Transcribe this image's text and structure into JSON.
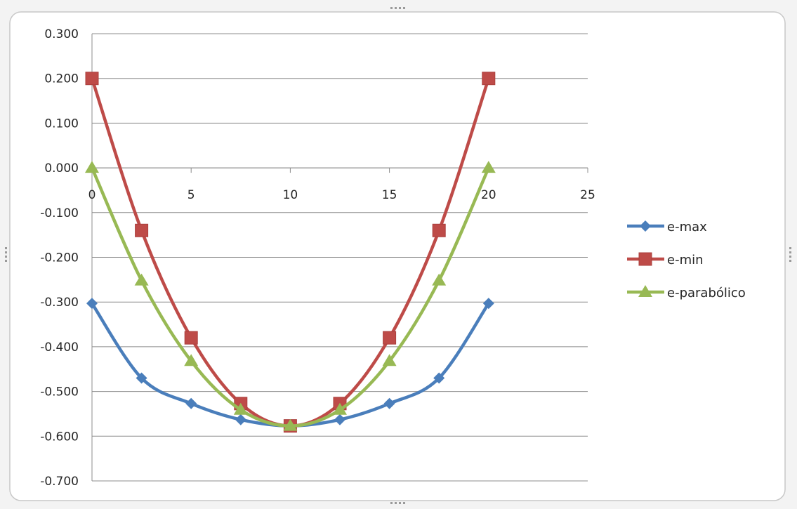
{
  "chart_data": {
    "type": "scatter",
    "title": "",
    "xlabel": "",
    "ylabel": "",
    "xlim": [
      0,
      25
    ],
    "ylim": [
      -0.7,
      0.3
    ],
    "x_ticks": [
      "0",
      "5",
      "10",
      "15",
      "20",
      "25"
    ],
    "y_ticks": [
      "0.300",
      "0.200",
      "0.100",
      "0.000",
      "-0.100",
      "-0.200",
      "-0.300",
      "-0.400",
      "-0.500",
      "-0.600",
      "-0.700"
    ],
    "grid": "horizontal",
    "legend_position": "right",
    "smooth_lines": true,
    "x": [
      0,
      2.5,
      5,
      7.5,
      10,
      12.5,
      15,
      17.5,
      20
    ],
    "series": [
      {
        "name": "e-max",
        "color": "#4a7ebb",
        "marker": "diamond",
        "values": [
          -0.303,
          -0.47,
          -0.527,
          -0.563,
          -0.577,
          -0.563,
          -0.527,
          -0.47,
          -0.303
        ]
      },
      {
        "name": "e-min",
        "color": "#be4b48",
        "marker": "square",
        "values": [
          0.2,
          -0.14,
          -0.38,
          -0.527,
          -0.577,
          -0.527,
          -0.38,
          -0.14,
          0.2
        ]
      },
      {
        "name": "e-parabólico",
        "color": "#98b954",
        "marker": "triangle",
        "values": [
          0.0,
          -0.252,
          -0.432,
          -0.541,
          -0.577,
          -0.541,
          -0.432,
          -0.252,
          0.0
        ]
      }
    ]
  }
}
